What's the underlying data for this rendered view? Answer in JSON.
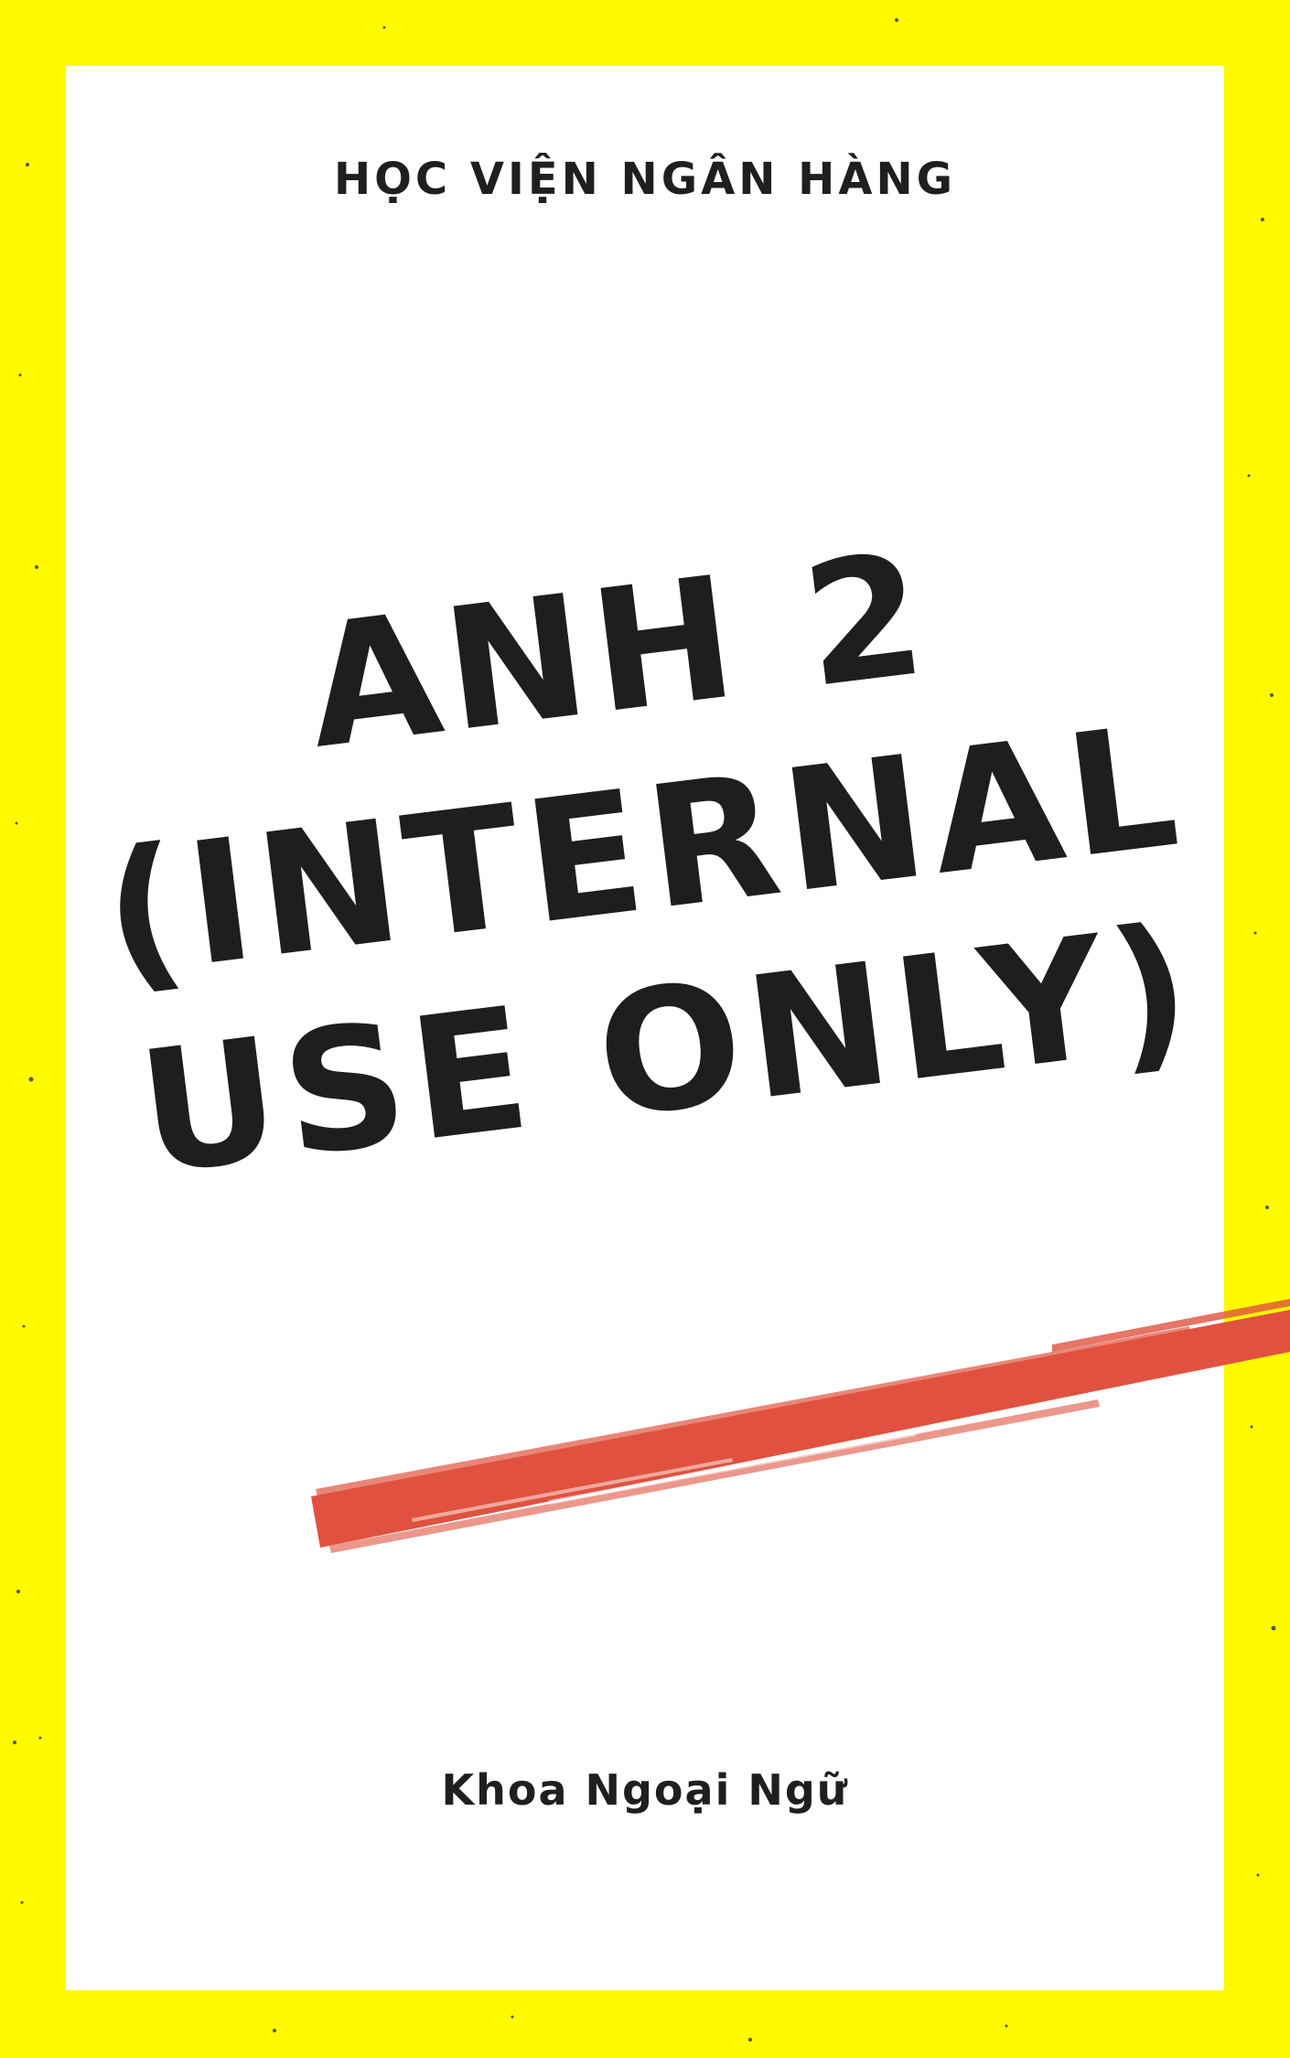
{
  "cover": {
    "institution": "HỌC VIỆN NGÂN HÀNG",
    "title_lines": [
      "ANH 2",
      "(INTERNAL",
      "USE ONLY)"
    ],
    "department": "Khoa Ngoại Ngữ"
  },
  "colors": {
    "frame": "#FFFA00",
    "card": "#FFFFFF",
    "text": "#1E1E1E",
    "brush_stroke": "#E0523F"
  }
}
